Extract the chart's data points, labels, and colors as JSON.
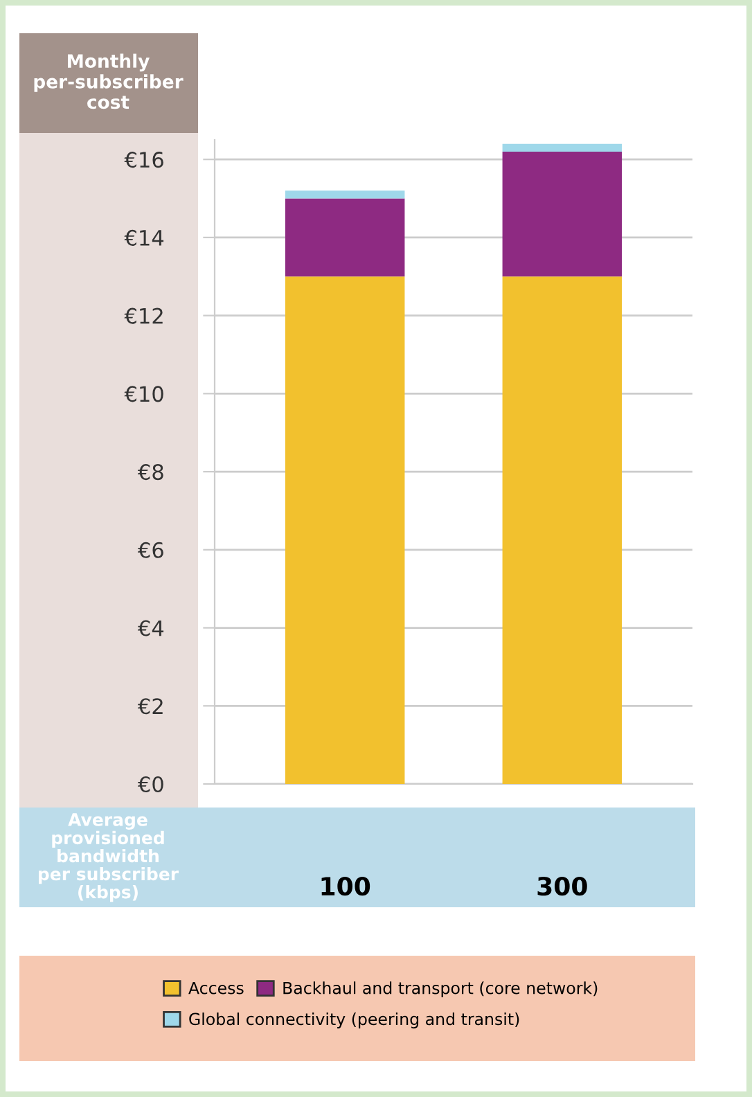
{
  "chart_data": {
    "type": "bar",
    "stacked": true,
    "ylabel": "Monthly\nper-subscriber\ncost",
    "xlabel": "Average\nprovisioned\nbandwidth\nper subscriber\n(kbps)",
    "categories": [
      "100",
      "300"
    ],
    "series": [
      {
        "name": "Access",
        "color": "#f2c12e",
        "values": [
          13.0,
          13.0
        ]
      },
      {
        "name": "Backhaul and transport (core network)",
        "color": "#8e2a82",
        "values": [
          2.0,
          3.2
        ]
      },
      {
        "name": "Global connectivity (peering and transit)",
        "color": "#9fd8ea",
        "values": [
          0.2,
          0.2
        ]
      }
    ],
    "ylim": [
      0,
      16.5
    ],
    "yticks": [
      {
        "value": 0,
        "label": "€0"
      },
      {
        "value": 2,
        "label": "€2"
      },
      {
        "value": 4,
        "label": "€4"
      },
      {
        "value": 6,
        "label": "€6"
      },
      {
        "value": 8,
        "label": "€8"
      },
      {
        "value": 10,
        "label": "€10"
      },
      {
        "value": 12,
        "label": "€12"
      },
      {
        "value": 14,
        "label": "€14"
      },
      {
        "value": 16,
        "label": "€16"
      }
    ],
    "grid": "y",
    "legend": "bottom"
  }
}
